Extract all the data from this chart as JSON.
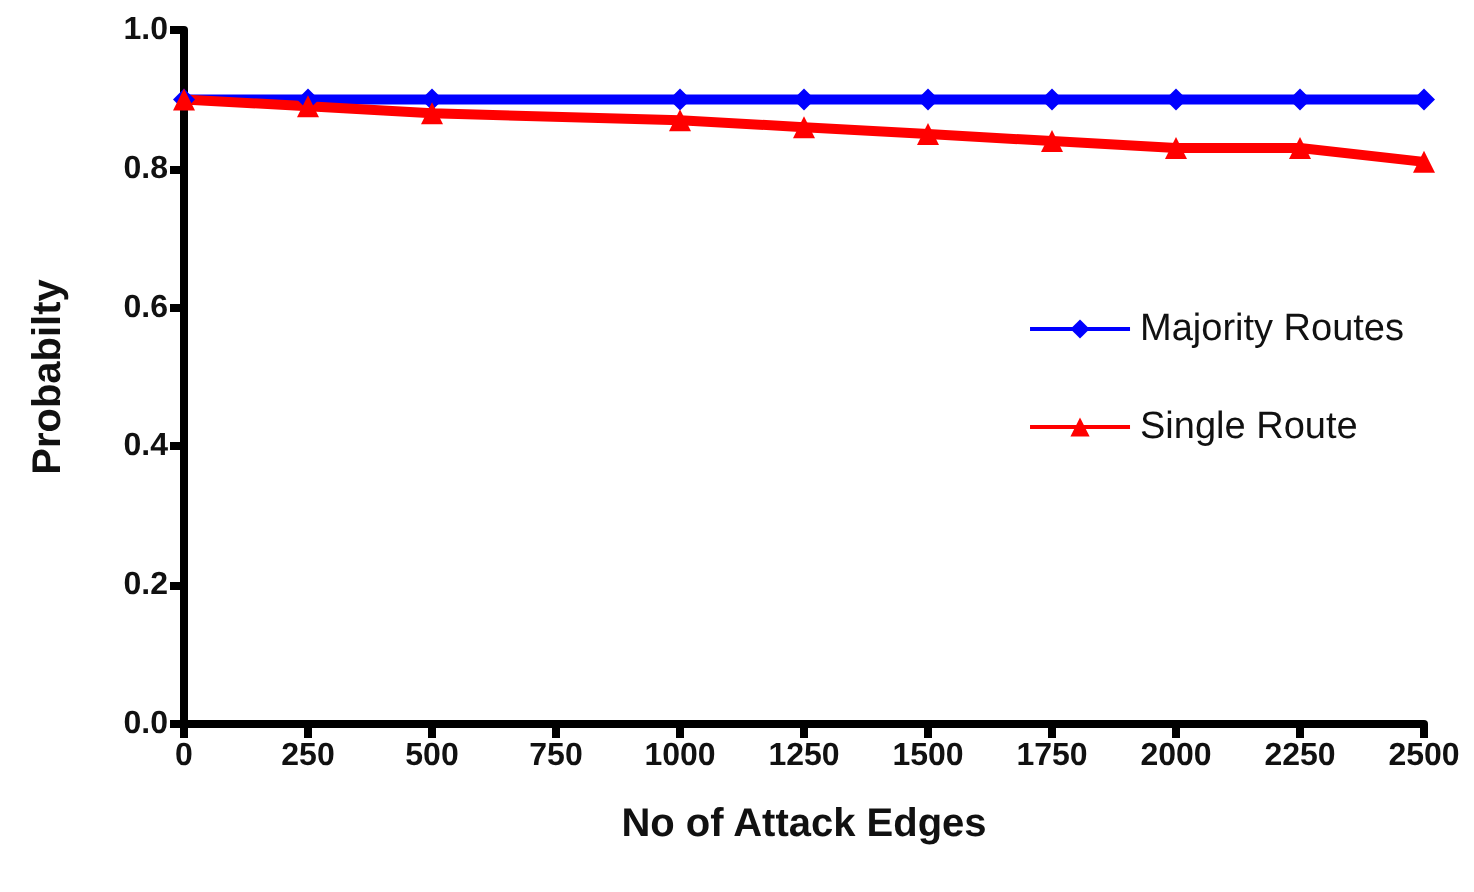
{
  "chart_data": {
    "type": "line",
    "xlabel": "No of Attack Edges",
    "ylabel": "Probabilty",
    "x": [
      0,
      250,
      500,
      1000,
      1250,
      1500,
      1750,
      2000,
      2250,
      2500
    ],
    "series": [
      {
        "name": "Majority Routes",
        "color": "#0000ff",
        "marker": "diamond",
        "values": [
          0.9,
          0.9,
          0.9,
          0.9,
          0.9,
          0.9,
          0.9,
          0.9,
          0.9,
          0.9
        ]
      },
      {
        "name": "Single Route",
        "color": "#ff0000",
        "marker": "triangle",
        "values": [
          0.9,
          0.89,
          0.88,
          0.87,
          0.86,
          0.85,
          0.84,
          0.83,
          0.83,
          0.81
        ]
      }
    ],
    "xlim": [
      0,
      2500
    ],
    "xticks": [
      0,
      250,
      500,
      750,
      1000,
      1250,
      1500,
      1750,
      2000,
      2250,
      2500
    ],
    "ylim": [
      0,
      1
    ],
    "yticks": [
      {
        "value": 0,
        "label": "0.0"
      },
      {
        "value": 0.2,
        "label": "0.2"
      },
      {
        "value": 0.4,
        "label": "0.4"
      },
      {
        "value": 0.6,
        "label": "0.6"
      },
      {
        "value": 0.8,
        "label": "0.8"
      },
      {
        "value": 1,
        "label": "1.0"
      }
    ],
    "grid": false,
    "legend": "right"
  }
}
